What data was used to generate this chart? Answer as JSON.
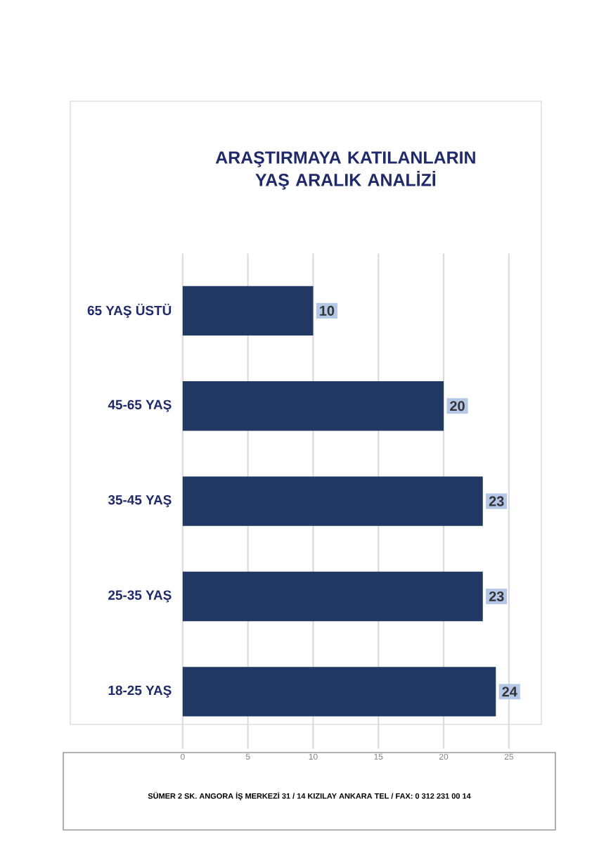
{
  "chart_data": {
    "type": "bar",
    "orientation": "horizontal",
    "title": "ARAŞTIRMAYA KATILANLARIN YAŞ ARALIK ANALİZİ",
    "categories": [
      "65 YAŞ ÜSTÜ",
      "45-65 YAŞ",
      "35-45 YAŞ",
      "25-35 YAŞ",
      "18-25 YAŞ"
    ],
    "values": [
      10,
      20,
      23,
      23,
      24
    ],
    "color": "#1f3864",
    "xlim": [
      0,
      25
    ],
    "xticks": [
      0,
      5,
      10,
      15,
      20,
      25
    ],
    "grid": "x",
    "data_labels": true,
    "annotations": [
      "SÜMER 2 SK. ANGORA İŞ MERKEZİ 31 / 14  KIZILAY ANKARA TEL / FAX: 0 312 231 00 14"
    ]
  }
}
